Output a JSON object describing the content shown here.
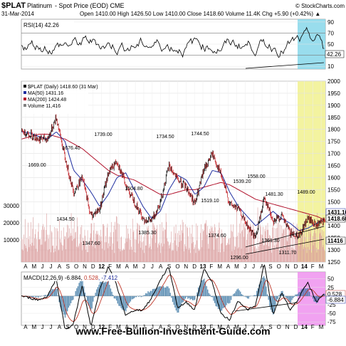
{
  "header": {
    "symbol": "$PLAT",
    "name": "Platinum",
    "desc": "- Spot Price (EOD)  CME",
    "credit": "© StockCharts.com",
    "date": "31-Mar-2014",
    "ohlc": "Open 1410.00  High 1426.50  Low 1410.00  Close 1418.60  Volume 11.4K  Chg +5.90 (+0.42%) ▲"
  },
  "rsi": {
    "label": "RSI(14) 42.26",
    "ticks": [
      "90",
      "70",
      "50",
      "30",
      "10"
    ],
    "tick_values": [
      90,
      70,
      50,
      30,
      10
    ],
    "last_value_label": "42.26",
    "last_value": 42.26,
    "overbought": 70,
    "oversold": 30
  },
  "price_panel": {
    "legend": [
      {
        "text": "$PLAT (Daily) 1418.60 (31 Mar)",
        "color": "#000000"
      },
      {
        "text": "MA(50) 1431.16",
        "color": "#1f2fa0"
      },
      {
        "text": "MA(200) 1424.48",
        "color": "#b0102a"
      },
      {
        "text": "Volume 11,416",
        "color": "#808080"
      }
    ],
    "ticks": [
      "2000",
      "1950",
      "1900",
      "1850",
      "1800",
      "1750",
      "1700",
      "1650",
      "1600",
      "1550",
      "1500",
      "1450",
      "1400",
      "1350",
      "1300",
      "1250"
    ],
    "vol_ticks": [
      "30000",
      "20000",
      "10000"
    ],
    "last_labels": [
      "1431.16",
      "1418.60",
      "11416"
    ],
    "annotations": [
      "1669.00",
      "1676.40",
      "1739.00",
      "1734.50",
      "1744.50",
      "1504.80",
      "1519.10",
      "1539.20",
      "1558.00",
      "1481.30",
      "1489.00",
      "1434.50",
      "1347.60",
      "1385.30",
      "1374.60",
      "1361.30",
      "1296.00",
      "1311.70"
    ]
  },
  "x_axis": {
    "labels": [
      "A",
      "M",
      "J",
      "J",
      "A",
      "S",
      "O",
      "N",
      "D",
      "12",
      "F",
      "M",
      "A",
      "M",
      "J",
      "J",
      "A",
      "S",
      "O",
      "N",
      "D",
      "13",
      "F",
      "M",
      "A",
      "M",
      "J",
      "J",
      "A",
      "S",
      "O",
      "N",
      "D",
      "14",
      "F",
      "M"
    ]
  },
  "macd": {
    "label_parts": [
      {
        "text": "MACD(12,26,9) -6.884, ",
        "color": "#000000"
      },
      {
        "text": "0.528",
        "color": "#c0392b"
      },
      {
        "text": ", -7.412",
        "color": "#1f2fa0"
      }
    ],
    "ticks": [
      "50",
      "25",
      "0",
      "-25",
      "-50",
      "-75"
    ],
    "tick_values": [
      50,
      25,
      0,
      -25,
      -50,
      -75
    ],
    "last_labels": [
      "0.528",
      "-6.884"
    ]
  },
  "watermark": "www.Free-Bullion-Investment-Guide.com",
  "colors": {
    "price": "#000000",
    "ma50": "#1f2fa0",
    "ma200": "#b0102a",
    "volume": "#d99a9a",
    "rsi": "#000000",
    "macd": "#000000",
    "signal": "#c0392b",
    "histogram": "#2f6f9f",
    "rsi_highlight": "#87d7ea",
    "price_highlight": "#f3f3a0",
    "macd_highlight": "#ee92ee"
  },
  "chart_data": {
    "type": "line",
    "title": "$PLAT Platinum - Spot Price (EOD) CME",
    "x": [
      "A",
      "M",
      "J",
      "J",
      "A",
      "S",
      "O",
      "N",
      "D",
      "12",
      "F",
      "M",
      "A",
      "M",
      "J",
      "J",
      "A",
      "S",
      "O",
      "N",
      "D",
      "13",
      "F",
      "M",
      "A",
      "M",
      "J",
      "J",
      "A",
      "S",
      "O",
      "N",
      "D",
      "14",
      "F",
      "M"
    ],
    "ylim": [
      1250,
      2000
    ],
    "series": [
      {
        "name": "$PLAT",
        "values": [
          1790,
          1780,
          1760,
          1760,
          1850,
          1680,
          1540,
          1600,
          1440,
          1470,
          1620,
          1670,
          1570,
          1500,
          1430,
          1420,
          1500,
          1650,
          1590,
          1560,
          1490,
          1630,
          1700,
          1610,
          1490,
          1470,
          1400,
          1350,
          1520,
          1420,
          1440,
          1370,
          1360,
          1430,
          1400,
          1418.6
        ]
      },
      {
        "name": "MA(50)",
        "values": [
          1790,
          1785,
          1770,
          1760,
          1790,
          1750,
          1630,
          1590,
          1540,
          1480,
          1530,
          1600,
          1620,
          1550,
          1480,
          1430,
          1460,
          1550,
          1610,
          1590,
          1530,
          1560,
          1630,
          1620,
          1540,
          1480,
          1440,
          1400,
          1430,
          1460,
          1430,
          1410,
          1380,
          1390,
          1410,
          1431.16
        ]
      },
      {
        "name": "MA(200)",
        "values": [
          1760,
          1770,
          1780,
          1780,
          1770,
          1760,
          1740,
          1720,
          1690,
          1660,
          1630,
          1610,
          1600,
          1590,
          1570,
          1550,
          1530,
          1530,
          1540,
          1550,
          1550,
          1560,
          1570,
          1580,
          1570,
          1550,
          1530,
          1510,
          1500,
          1490,
          1480,
          1470,
          1460,
          1450,
          1440,
          1424.48
        ]
      }
    ]
  }
}
